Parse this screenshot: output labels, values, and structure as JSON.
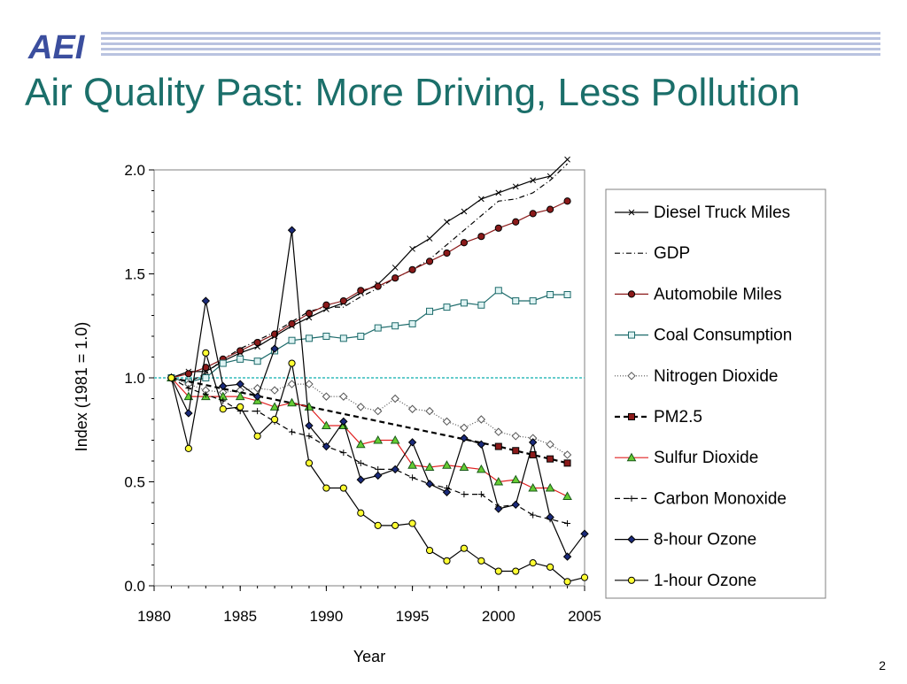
{
  "slide": {
    "logo_text": "AEI",
    "title": "Air Quality Past: More Driving, Less Pollution",
    "page_number": "2"
  },
  "chart_data": {
    "type": "line",
    "title": "",
    "xlabel": "Year",
    "ylabel": "Index (1981 = 1.0)",
    "xlim": [
      1980,
      2005
    ],
    "ylim": [
      0,
      2.0
    ],
    "xticks": [
      1980,
      1985,
      1990,
      1995,
      2000,
      2005
    ],
    "yticks": [
      0.0,
      0.5,
      1.0,
      1.5,
      2.0
    ],
    "ytick_labels": [
      "0.0",
      "0.5",
      "1.0",
      "1.5",
      "2.0"
    ],
    "reference_line": 1.0,
    "legend_position": "right",
    "series": [
      {
        "name": "Diesel Truck Miles",
        "color": "#000000",
        "marker": "x",
        "dash": "solid",
        "x": [
          1981,
          1982,
          1983,
          1984,
          1985,
          1986,
          1987,
          1988,
          1989,
          1990,
          1991,
          1992,
          1993,
          1994,
          1995,
          1996,
          1997,
          1998,
          1999,
          2000,
          2001,
          2002,
          2003,
          2004
        ],
        "y": [
          1.0,
          1.03,
          1.03,
          1.08,
          1.12,
          1.15,
          1.2,
          1.25,
          1.29,
          1.33,
          1.36,
          1.41,
          1.45,
          1.53,
          1.62,
          1.67,
          1.75,
          1.8,
          1.86,
          1.89,
          1.92,
          1.95,
          1.97,
          2.05
        ]
      },
      {
        "name": "GDP",
        "color": "#000000",
        "marker": "none",
        "dash": "dashdot",
        "x": [
          1981,
          1982,
          1983,
          1984,
          1985,
          1986,
          1987,
          1988,
          1989,
          1990,
          1991,
          1992,
          1993,
          1994,
          1995,
          1996,
          1997,
          1998,
          1999,
          2000,
          2001,
          2002,
          2003,
          2004
        ],
        "y": [
          1.0,
          0.98,
          1.02,
          1.09,
          1.14,
          1.18,
          1.22,
          1.27,
          1.32,
          1.34,
          1.34,
          1.39,
          1.43,
          1.48,
          1.52,
          1.57,
          1.64,
          1.71,
          1.78,
          1.85,
          1.86,
          1.89,
          1.95,
          2.03
        ]
      },
      {
        "name": "Automobile Miles",
        "color": "#8b1a1a",
        "marker": "circle",
        "fill": "#8b1a1a",
        "dash": "solid",
        "x": [
          1981,
          1982,
          1983,
          1984,
          1985,
          1986,
          1987,
          1988,
          1989,
          1990,
          1991,
          1992,
          1993,
          1994,
          1995,
          1996,
          1997,
          1998,
          1999,
          2000,
          2001,
          2002,
          2003,
          2004
        ],
        "y": [
          1.0,
          1.02,
          1.05,
          1.09,
          1.13,
          1.17,
          1.21,
          1.26,
          1.31,
          1.35,
          1.37,
          1.42,
          1.44,
          1.48,
          1.52,
          1.56,
          1.6,
          1.65,
          1.68,
          1.72,
          1.75,
          1.79,
          1.81,
          1.85
        ]
      },
      {
        "name": "Coal Consumption",
        "color": "#1d6b6b",
        "marker": "square",
        "fill": "#dff3f3",
        "dash": "solid",
        "x": [
          1981,
          1982,
          1983,
          1984,
          1985,
          1986,
          1987,
          1988,
          1989,
          1990,
          1991,
          1992,
          1993,
          1994,
          1995,
          1996,
          1997,
          1998,
          1999,
          2000,
          2001,
          2002,
          2003,
          2004
        ],
        "y": [
          1.0,
          0.98,
          1.0,
          1.07,
          1.09,
          1.08,
          1.13,
          1.18,
          1.19,
          1.2,
          1.19,
          1.2,
          1.24,
          1.25,
          1.26,
          1.32,
          1.34,
          1.36,
          1.35,
          1.42,
          1.37,
          1.37,
          1.4,
          1.4
        ]
      },
      {
        "name": "Nitrogen Dioxide",
        "color": "#555555",
        "marker": "diamond",
        "fill": "#ffffff",
        "dash": "dotted",
        "x": [
          1981,
          1982,
          1983,
          1984,
          1985,
          1986,
          1987,
          1988,
          1989,
          1990,
          1991,
          1992,
          1993,
          1994,
          1995,
          1996,
          1997,
          1998,
          1999,
          2000,
          2001,
          2002,
          2003,
          2004
        ],
        "y": [
          1.0,
          0.97,
          0.94,
          0.93,
          0.94,
          0.95,
          0.94,
          0.97,
          0.97,
          0.91,
          0.91,
          0.86,
          0.84,
          0.9,
          0.85,
          0.84,
          0.79,
          0.76,
          0.8,
          0.74,
          0.72,
          0.71,
          0.68,
          0.63
        ]
      },
      {
        "name": "PM2.5",
        "color": "#000000",
        "marker": "square",
        "fill": "#8b1a1a",
        "dash": "dashed",
        "x": [
          1981,
          2000,
          2001,
          2002,
          2003,
          2004
        ],
        "y": [
          1.0,
          0.67,
          0.65,
          0.63,
          0.61,
          0.59
        ]
      },
      {
        "name": "Sulfur Dioxide",
        "color": "#e02020",
        "marker": "triangle",
        "fill": "#66cc33",
        "dash": "solid",
        "x": [
          1981,
          1982,
          1983,
          1984,
          1985,
          1986,
          1987,
          1988,
          1989,
          1990,
          1991,
          1992,
          1993,
          1994,
          1995,
          1996,
          1997,
          1998,
          1999,
          2000,
          2001,
          2002,
          2003,
          2004
        ],
        "y": [
          1.0,
          0.91,
          0.91,
          0.91,
          0.91,
          0.89,
          0.86,
          0.88,
          0.86,
          0.77,
          0.77,
          0.68,
          0.7,
          0.7,
          0.58,
          0.57,
          0.58,
          0.57,
          0.56,
          0.5,
          0.51,
          0.47,
          0.47,
          0.43
        ]
      },
      {
        "name": "Carbon Monoxide",
        "color": "#000000",
        "marker": "plus",
        "dash": "dashed",
        "x": [
          1981,
          1982,
          1983,
          1984,
          1985,
          1986,
          1987,
          1988,
          1989,
          1990,
          1991,
          1992,
          1993,
          1994,
          1995,
          1996,
          1997,
          1998,
          1999,
          2000,
          2001,
          2002,
          2003,
          2004
        ],
        "y": [
          1.0,
          0.95,
          0.92,
          0.89,
          0.84,
          0.84,
          0.79,
          0.74,
          0.72,
          0.67,
          0.64,
          0.59,
          0.56,
          0.56,
          0.52,
          0.49,
          0.47,
          0.44,
          0.44,
          0.38,
          0.39,
          0.34,
          0.32,
          0.3
        ]
      },
      {
        "name": "8-hour Ozone",
        "color": "#000000",
        "marker": "diamond",
        "fill": "#1a2a7a",
        "dash": "solid",
        "x": [
          1981,
          1982,
          1983,
          1984,
          1985,
          1986,
          1987,
          1988,
          1989,
          1990,
          1991,
          1992,
          1993,
          1994,
          1995,
          1996,
          1997,
          1998,
          1999,
          2000,
          2001,
          2002,
          2003,
          2004,
          2005
        ],
        "y": [
          1.0,
          0.83,
          1.37,
          0.96,
          0.97,
          0.91,
          1.14,
          1.71,
          0.77,
          0.67,
          0.79,
          0.51,
          0.53,
          0.56,
          0.69,
          0.49,
          0.45,
          0.71,
          0.68,
          0.37,
          0.39,
          0.69,
          0.33,
          0.14,
          0.25
        ]
      },
      {
        "name": "1-hour Ozone",
        "color": "#000000",
        "marker": "circle",
        "fill": "#ffff33",
        "dash": "solid",
        "x": [
          1981,
          1982,
          1983,
          1984,
          1985,
          1986,
          1987,
          1988,
          1989,
          1990,
          1991,
          1992,
          1993,
          1994,
          1995,
          1996,
          1997,
          1998,
          1999,
          2000,
          2001,
          2002,
          2003,
          2004,
          2005
        ],
        "y": [
          1.0,
          0.66,
          1.12,
          0.85,
          0.86,
          0.72,
          0.8,
          1.07,
          0.59,
          0.47,
          0.47,
          0.35,
          0.29,
          0.29,
          0.3,
          0.17,
          0.12,
          0.18,
          0.12,
          0.07,
          0.07,
          0.11,
          0.09,
          0.02,
          0.04
        ]
      }
    ]
  }
}
